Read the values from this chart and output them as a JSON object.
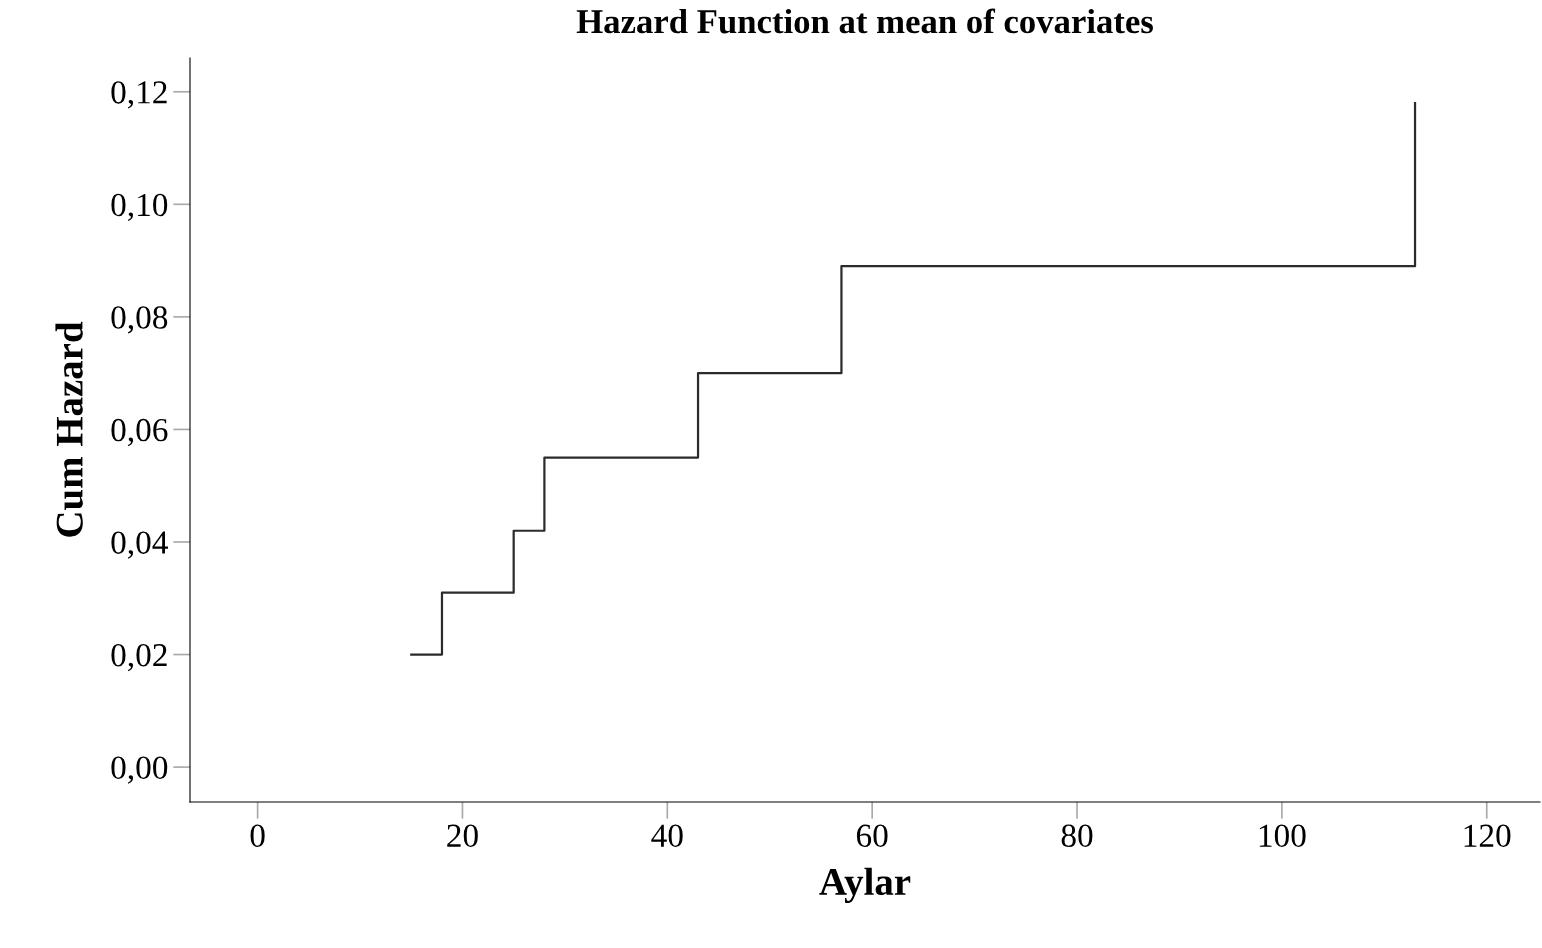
{
  "chart_data": {
    "type": "step",
    "title": "Hazard Function at mean of covariates",
    "xlabel": "Aylar",
    "ylabel": "Cum Hazard",
    "series": [
      {
        "color": "#2b2b2b",
        "x": [
          15,
          18,
          25,
          28,
          43,
          57,
          113
        ],
        "values": [
          0.02,
          0.031,
          0.042,
          0.055,
          0.07,
          0.089,
          0.118
        ]
      }
    ],
    "xlim": [
      -6.6,
      125.2
    ],
    "xticks": [
      0,
      20,
      40,
      60,
      80,
      100,
      120
    ],
    "ylim": [
      -0.0062,
      0.126
    ],
    "yticks": [
      {
        "value": 0,
        "label": "0,00"
      },
      {
        "value": 0.02,
        "label": "0,02"
      },
      {
        "value": 0.04,
        "label": "0,04"
      },
      {
        "value": 0.06,
        "label": "0,06"
      },
      {
        "value": 0.08,
        "label": "0,08"
      },
      {
        "value": 0.1,
        "label": "0,10"
      },
      {
        "value": 0.12,
        "label": "0,12"
      }
    ],
    "grid": false,
    "legend": false,
    "marker": "none",
    "line_style": "solid"
  }
}
